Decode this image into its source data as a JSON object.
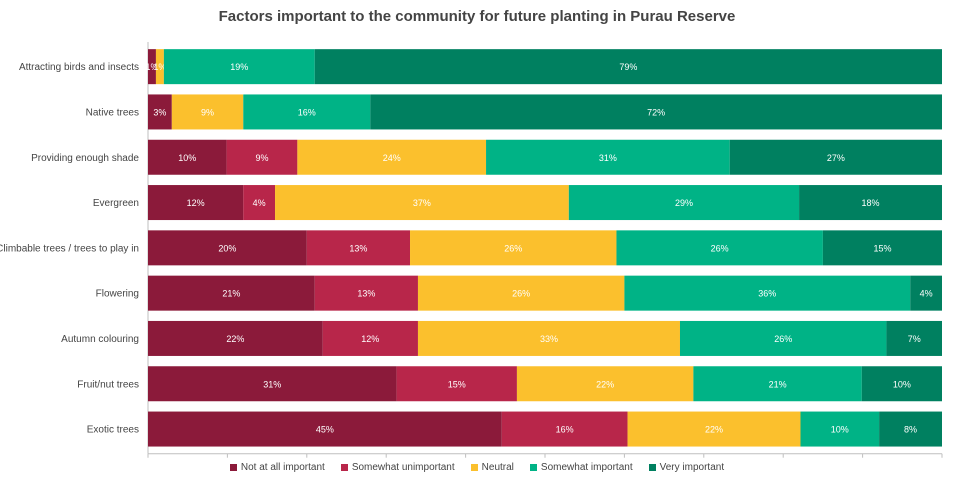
{
  "chart_data": {
    "type": "bar",
    "orientation": "horizontal",
    "stacked": true,
    "title": "Factors important to the community for future planting in Purau Reserve",
    "categories": [
      "Attracting birds and insects",
      "Native trees",
      "Providing enough shade",
      "Evergreen",
      "Climbable trees / trees to play in",
      "Flowering",
      "Autumn colouring",
      "Fruit/nut trees",
      "Exotic trees"
    ],
    "series": [
      {
        "name": "Not at all important",
        "color": "#8b1a3a",
        "values": [
          1,
          3,
          10,
          12,
          20,
          21,
          22,
          31,
          45
        ]
      },
      {
        "name": "Somewhat unimportant",
        "color": "#b8264a",
        "values": [
          0,
          0,
          9,
          4,
          13,
          13,
          12,
          15,
          16
        ]
      },
      {
        "name": "Neutral",
        "color": "#fbc02d",
        "values": [
          1,
          9,
          24,
          37,
          26,
          26,
          33,
          22,
          22
        ]
      },
      {
        "name": "Somewhat important",
        "color": "#00b386",
        "values": [
          19,
          16,
          31,
          29,
          26,
          36,
          26,
          21,
          10
        ]
      },
      {
        "name": "Very important",
        "color": "#008060",
        "values": [
          79,
          72,
          27,
          18,
          15,
          4,
          7,
          10,
          8
        ]
      }
    ],
    "value_format": "{v}%",
    "legend_position": "bottom",
    "grid": false
  }
}
